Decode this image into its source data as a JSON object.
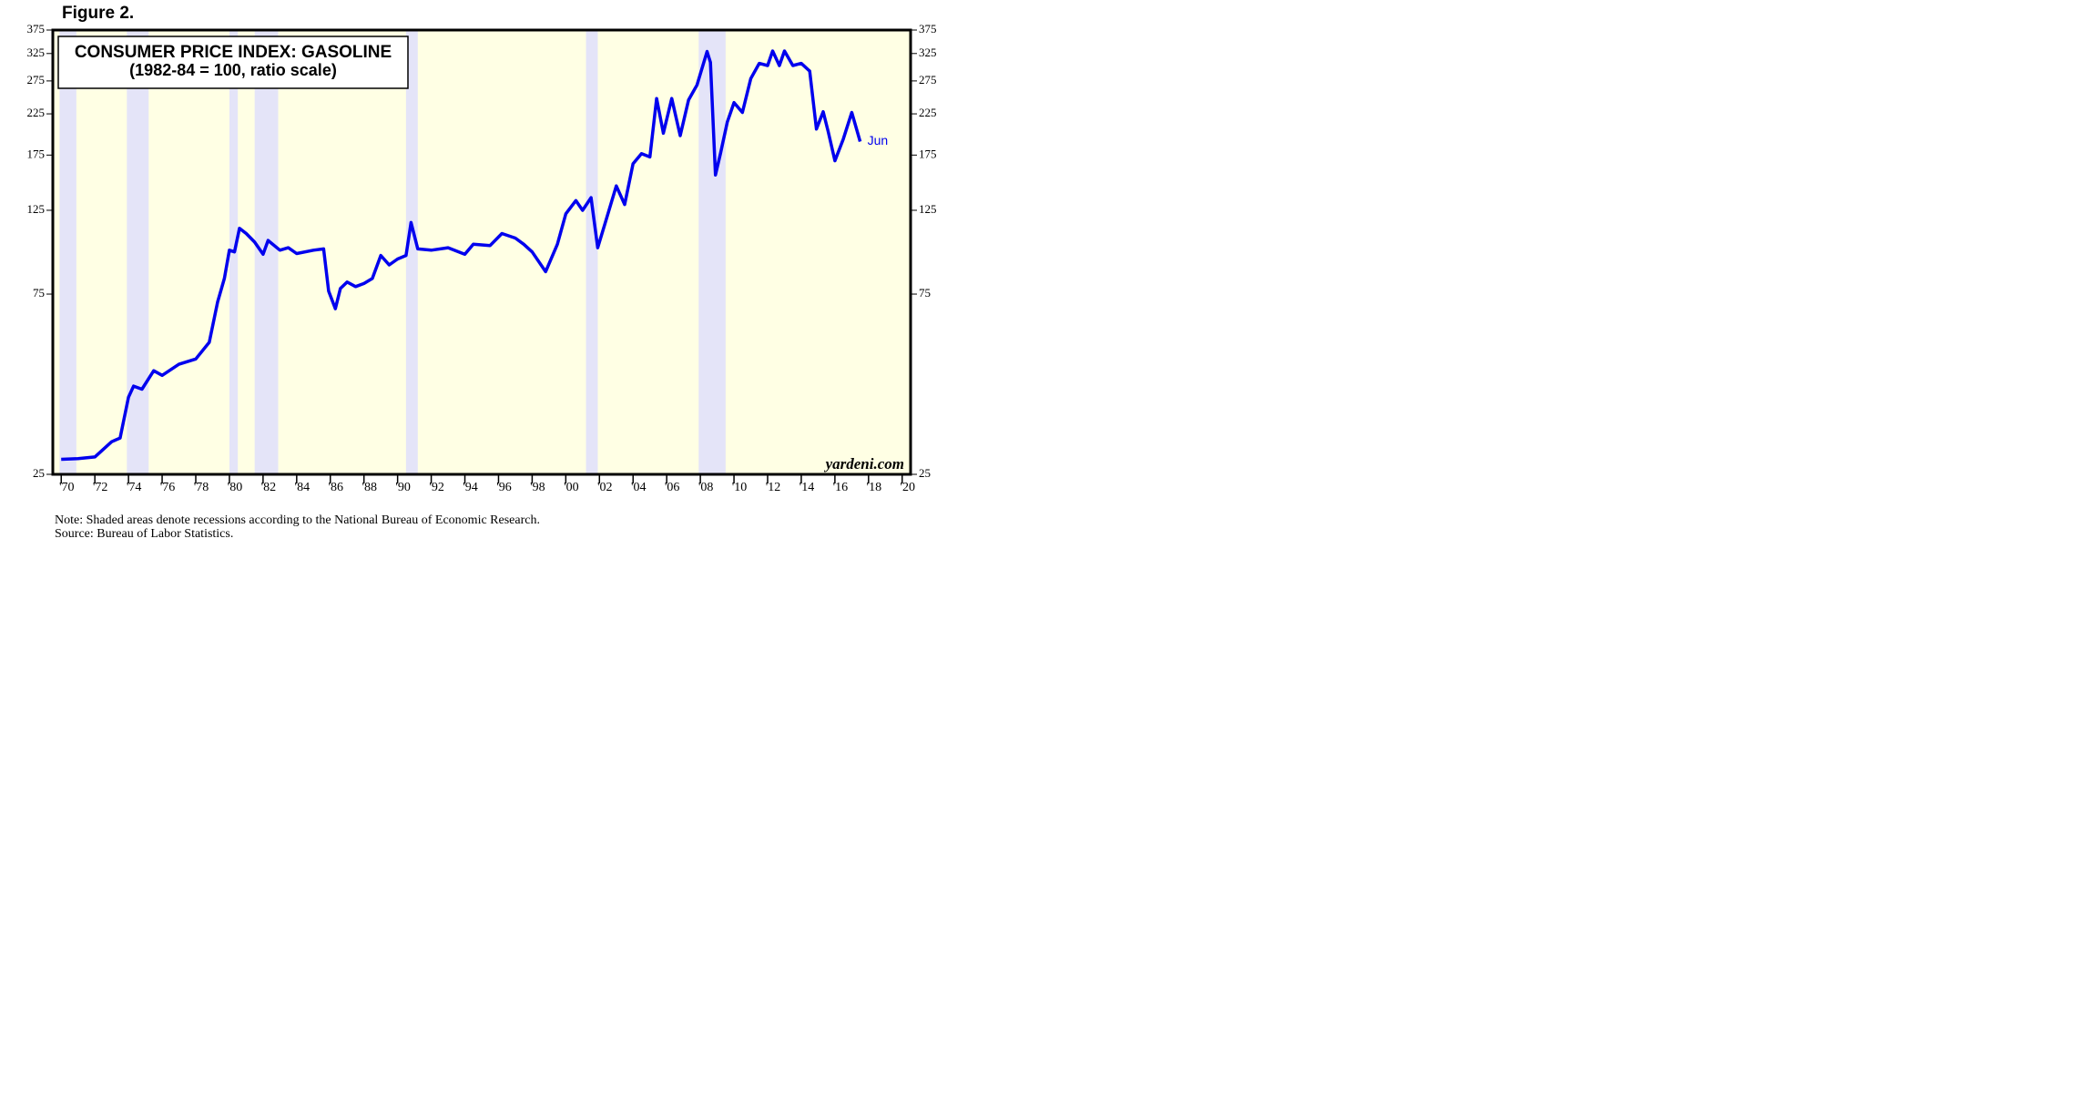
{
  "chart_data": {
    "type": "line",
    "figure_label": "Figure 2.",
    "title": "CONSUMER PRICE INDEX: GASOLINE",
    "subtitle": "(1982-84 = 100, ratio scale)",
    "watermark": "yardeni.com",
    "annotation": "Jun",
    "notes": [
      "Note: Shaded areas denote recessions according to the National Bureau of Economic Research.",
      "Source: Bureau of Labor Statistics."
    ],
    "log_scale": true,
    "background": "#ffffe4",
    "recession_color": "#e4e4f8",
    "recessions": [
      [
        1969.9,
        1970.9
      ],
      [
        1973.9,
        1975.2
      ],
      [
        1980.0,
        1980.5
      ],
      [
        1981.5,
        1982.9
      ],
      [
        1990.5,
        1991.2
      ],
      [
        2001.2,
        2001.9
      ],
      [
        2007.9,
        2009.5
      ]
    ],
    "xlim": [
      1969.5,
      2020.5
    ],
    "ylim": [
      25,
      375
    ],
    "yticks": [
      25,
      75,
      125,
      175,
      225,
      275,
      325,
      375
    ],
    "xticks": [
      {
        "value": 1970,
        "label": "'70"
      },
      {
        "value": 1972,
        "label": "'72"
      },
      {
        "value": 1974,
        "label": "'74"
      },
      {
        "value": 1976,
        "label": "'76"
      },
      {
        "value": 1978,
        "label": "'78"
      },
      {
        "value": 1980,
        "label": "'80"
      },
      {
        "value": 1982,
        "label": "'82"
      },
      {
        "value": 1984,
        "label": "'84"
      },
      {
        "value": 1986,
        "label": "'86"
      },
      {
        "value": 1988,
        "label": "'88"
      },
      {
        "value": 1990,
        "label": "'90"
      },
      {
        "value": 1992,
        "label": "'92"
      },
      {
        "value": 1994,
        "label": "'94"
      },
      {
        "value": 1996,
        "label": "'96"
      },
      {
        "value": 1998,
        "label": "'98"
      },
      {
        "value": 2000,
        "label": "'00"
      },
      {
        "value": 2002,
        "label": "'02"
      },
      {
        "value": 2004,
        "label": "'04"
      },
      {
        "value": 2006,
        "label": "'06"
      },
      {
        "value": 2008,
        "label": "'08"
      },
      {
        "value": 2010,
        "label": "'10"
      },
      {
        "value": 2012,
        "label": "'12"
      },
      {
        "value": 2014,
        "label": "'14"
      },
      {
        "value": 2016,
        "label": "'16"
      },
      {
        "value": 2018,
        "label": "'18"
      },
      {
        "value": 2020,
        "label": "'20"
      }
    ],
    "x": [
      1970.0,
      1971.0,
      1972.0,
      1973.0,
      1973.5,
      1974.0,
      1974.3,
      1974.8,
      1975.5,
      1976.0,
      1977.0,
      1978.0,
      1978.8,
      1979.3,
      1979.7,
      1980.0,
      1980.3,
      1980.6,
      1981.0,
      1981.5,
      1982.0,
      1982.3,
      1983.0,
      1983.5,
      1984.0,
      1985.0,
      1985.6,
      1985.9,
      1986.3,
      1986.6,
      1987.0,
      1987.5,
      1988.0,
      1988.5,
      1989.0,
      1989.5,
      1990.0,
      1990.5,
      1990.8,
      1991.2,
      1992.0,
      1993.0,
      1994.0,
      1994.5,
      1995.5,
      1996.2,
      1997.0,
      1997.5,
      1998.0,
      1998.8,
      1999.5,
      2000.0,
      2000.6,
      2001.0,
      2001.5,
      2001.9,
      2002.3,
      2003.0,
      2003.5,
      2004.0,
      2004.5,
      2005.0,
      2005.4,
      2005.8,
      2006.3,
      2006.8,
      2007.3,
      2007.8,
      2008.4,
      2008.6,
      2008.9,
      2009.2,
      2009.6,
      2010.0,
      2010.5,
      2011.0,
      2011.5,
      2012.0,
      2012.3,
      2012.7,
      2013.0,
      2013.5,
      2014.0,
      2014.5,
      2014.9,
      2015.3,
      2015.6,
      2016.0,
      2016.5,
      2017.0,
      2017.5
    ],
    "series": [
      {
        "name": "CPI: Gasoline",
        "color": "#0000ee",
        "values": [
          27.4,
          27.5,
          27.8,
          30.5,
          31.2,
          40,
          42.8,
          42,
          47,
          45.7,
          48.9,
          50.5,
          55.9,
          71.5,
          82.5,
          98,
          97,
          112,
          108.5,
          103,
          95.6,
          104,
          98,
          99.5,
          96,
          98,
          98.8,
          76.4,
          68.6,
          77.6,
          80.7,
          78.5,
          80,
          82.5,
          94.9,
          89.6,
          92.9,
          94.9,
          116,
          98.8,
          98,
          99.5,
          95.6,
          101.6,
          100.8,
          108.5,
          105.5,
          101.6,
          97,
          86,
          101.6,
          122.4,
          132.6,
          125,
          135,
          99.5,
          114,
          145,
          129.5,
          166,
          176.5,
          173,
          247,
          200,
          247,
          197,
          245,
          268,
          329,
          308,
          155,
          177,
          214,
          241,
          227,
          279,
          306,
          302,
          330,
          302,
          330,
          302,
          306,
          292,
          205,
          228,
          202,
          169,
          193,
          227,
          190
        ]
      }
    ]
  }
}
